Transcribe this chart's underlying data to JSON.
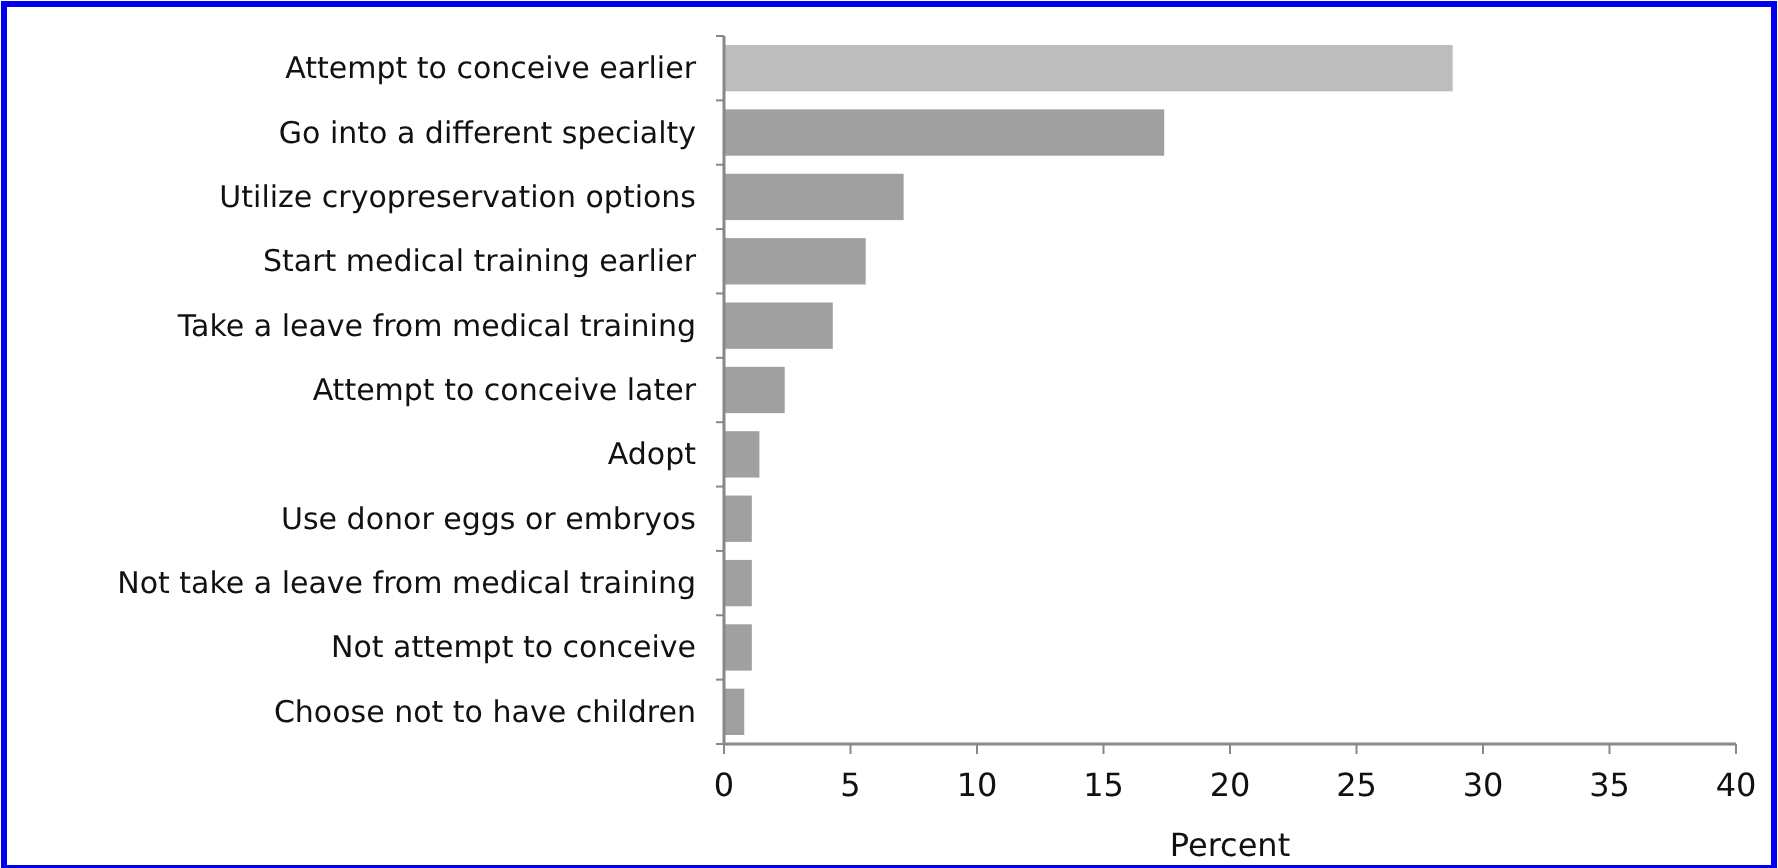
{
  "chart_data": {
    "type": "bar",
    "orientation": "horizontal",
    "xlabel": "Percent",
    "categories": [
      "Attempt to conceive earlier",
      "Go into a different specialty",
      "Utilize cryopreservation options",
      "Start medical training earlier",
      "Take a leave from medical training",
      "Attempt to conceive later",
      "Adopt",
      "Use donor eggs or embryos",
      "Not take a leave from medical training",
      "Not attempt to conceive",
      "Choose not to have children"
    ],
    "values": [
      28.8,
      17.4,
      7.1,
      5.6,
      4.3,
      2.4,
      1.4,
      1.1,
      1.1,
      1.1,
      0.8
    ],
    "colors": [
      "#bdbdbd",
      "#a0a0a0",
      "#a0a0a0",
      "#a0a0a0",
      "#a0a0a0",
      "#a0a0a0",
      "#a0a0a0",
      "#a0a0a0",
      "#a0a0a0",
      "#a0a0a0",
      "#a0a0a0"
    ],
    "xlim": [
      0,
      40
    ],
    "xticks": [
      0,
      5,
      10,
      15,
      20,
      25,
      30,
      35,
      40
    ],
    "grid": false
  }
}
